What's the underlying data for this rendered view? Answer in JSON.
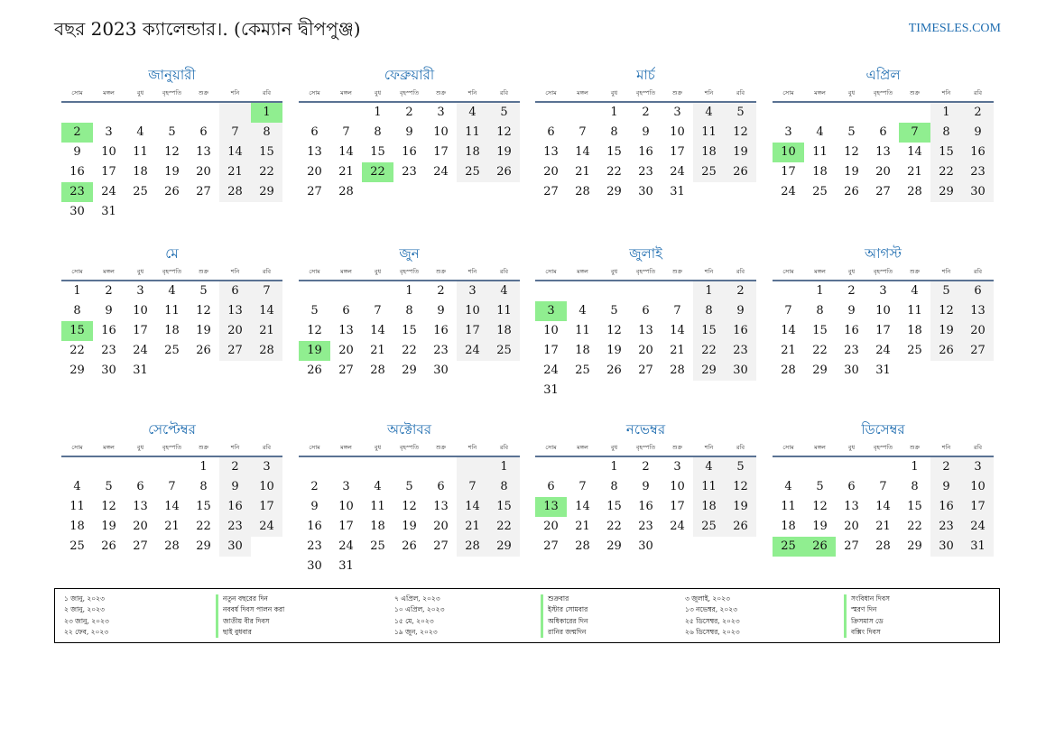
{
  "header": {
    "title": "বছর 2023 ক্যালেন্ডার।. (কেম্যান দ্বীপপুঞ্জ)",
    "site": "TIMESLES.COM"
  },
  "weekdays": [
    "সোম",
    "মঙ্গল",
    "বুধ",
    "বৃহস্পতি",
    "শুক্র",
    "শনি",
    "রবি"
  ],
  "months": [
    {
      "name": "জানুয়ারী",
      "offset": 6,
      "days": 31,
      "holidays": [
        1,
        2,
        23
      ]
    },
    {
      "name": "ফেব্রুয়ারী",
      "offset": 2,
      "days": 28,
      "holidays": [
        22
      ]
    },
    {
      "name": "মার্চ",
      "offset": 2,
      "days": 31,
      "holidays": []
    },
    {
      "name": "এপ্রিল",
      "offset": 5,
      "days": 30,
      "holidays": [
        7,
        10
      ]
    },
    {
      "name": "মে",
      "offset": 0,
      "days": 31,
      "holidays": [
        15
      ]
    },
    {
      "name": "জুন",
      "offset": 3,
      "days": 30,
      "holidays": [
        19
      ]
    },
    {
      "name": "জুলাই",
      "offset": 5,
      "days": 31,
      "holidays": [
        3
      ]
    },
    {
      "name": "আগস্ট",
      "offset": 1,
      "days": 31,
      "holidays": []
    },
    {
      "name": "সেপ্টেম্বর",
      "offset": 4,
      "days": 30,
      "holidays": []
    },
    {
      "name": "অক্টোবর",
      "offset": 6,
      "days": 31,
      "holidays": []
    },
    {
      "name": "নভেম্বর",
      "offset": 2,
      "days": 30,
      "holidays": [
        13
      ]
    },
    {
      "name": "ডিসেম্বর",
      "offset": 4,
      "days": 31,
      "holidays": [
        25,
        26
      ]
    }
  ],
  "holiday_list": {
    "col1_dates": [
      "১ জানু, ২০২৩",
      "২ জানু, ২০২৩",
      "২৩ জানু, ২০২৩",
      "২২ ফেব, ২০২৩"
    ],
    "col1_names": [
      "নতুন বছরের দিন",
      "নববর্ষ দিবস পালন করা",
      "জাতীয় বীর দিবস",
      "ছাই বুধবার"
    ],
    "col2_dates": [
      "৭ এপ্রিল, ২০২৩",
      "১০ এপ্রিল, ২০২৩",
      "১৫ মে, ২০২৩",
      "১৯ জুন, ২০২৩"
    ],
    "col2_names": [
      "শুক্রবার",
      "ইস্টার সোমবার",
      "অধিকারের দিন",
      "রানির জন্মদিন"
    ],
    "col3_dates": [
      "৩ জুলাই, ২০২৩",
      "১৩ নভেম্বর, ২০২৩",
      "২৫ ডিসেম্বর, ২০২৩",
      "২৬ ডিসেম্বর, ২০২৩"
    ],
    "col3_names": [
      "সংবিধান দিবস",
      "স্মরণ দিন",
      "ক্রিসমাস ডে",
      "বক্সিং দিবস"
    ]
  },
  "colors": {
    "accent": "#1f6db0",
    "holiday": "#90ee90",
    "weekend": "#f2f2f2",
    "rule": "#5a7293"
  }
}
